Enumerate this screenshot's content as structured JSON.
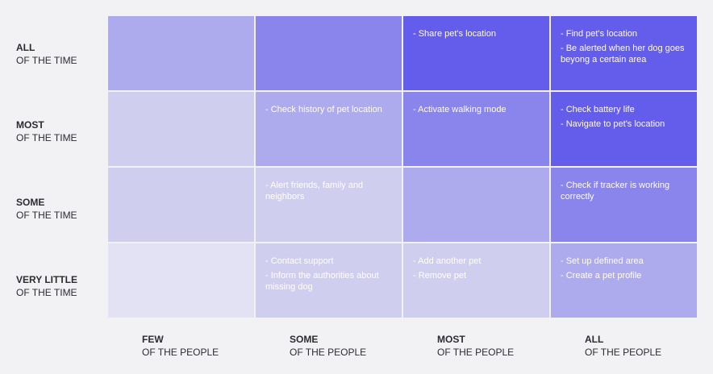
{
  "rows": [
    {
      "strong": "ALL",
      "sub": "OF THE TIME"
    },
    {
      "strong": "MOST",
      "sub": "OF THE TIME"
    },
    {
      "strong": "SOME",
      "sub": "OF THE TIME"
    },
    {
      "strong": "VERY LITTLE",
      "sub": "OF THE TIME"
    }
  ],
  "columns": [
    {
      "strong": "FEW",
      "sub": "OF THE PEOPLE"
    },
    {
      "strong": "SOME",
      "sub": "OF THE PEOPLE"
    },
    {
      "strong": "MOST",
      "sub": "OF THE PEOPLE"
    },
    {
      "strong": "ALL",
      "sub": "OF THE PEOPLE"
    }
  ],
  "colors": {
    "level1": "#e3e2f5",
    "level2": "#d0ceef",
    "level3": "#adaaee",
    "level4": "#8a84ed",
    "level5": "#645cea"
  },
  "cells": [
    [
      {
        "items": [],
        "color": "#adaaee"
      },
      {
        "items": [],
        "color": "#8a84ed"
      },
      {
        "items": [
          "- Share pet's location"
        ],
        "color": "#645cea"
      },
      {
        "items": [
          "- Find pet's location",
          "- Be alerted when her dog goes beyong a certain area"
        ],
        "color": "#645cea"
      }
    ],
    [
      {
        "items": [],
        "color": "#d0ceef"
      },
      {
        "items": [
          "- Check history of pet location"
        ],
        "color": "#adaaee"
      },
      {
        "items": [
          "- Activate walking mode"
        ],
        "color": "#8a84ed"
      },
      {
        "items": [
          "- Check battery life",
          "- Navigate to pet's location"
        ],
        "color": "#645cea"
      }
    ],
    [
      {
        "items": [],
        "color": "#d0ceef"
      },
      {
        "items": [
          "- Alert friends, family and neighbors"
        ],
        "color": "#d0ceef"
      },
      {
        "items": [],
        "color": "#adaaee"
      },
      {
        "items": [
          "- Check if tracker is working correctly"
        ],
        "color": "#8a84ed"
      }
    ],
    [
      {
        "items": [],
        "color": "#e3e2f5"
      },
      {
        "items": [
          "- Contact support",
          "- Inform the authorities about missing dog"
        ],
        "color": "#d0ceef"
      },
      {
        "items": [
          "- Add another pet",
          "- Remove pet"
        ],
        "color": "#d0ceef"
      },
      {
        "items": [
          "- Set up defined area",
          "- Create a pet profile"
        ],
        "color": "#adaaee"
      }
    ]
  ]
}
